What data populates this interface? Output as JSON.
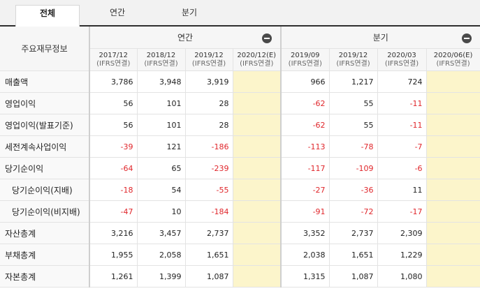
{
  "tabs": [
    {
      "label": "전체",
      "active": true
    },
    {
      "label": "연간",
      "active": false
    },
    {
      "label": "분기",
      "active": false
    }
  ],
  "table": {
    "row_header": "주요재무정보",
    "groups": [
      {
        "label": "연간",
        "periods": [
          {
            "date": "2017/12",
            "basis": "(IFRS연결)",
            "estimate": false
          },
          {
            "date": "2018/12",
            "basis": "(IFRS연결)",
            "estimate": false
          },
          {
            "date": "2019/12",
            "basis": "(IFRS연결)",
            "estimate": false
          },
          {
            "date": "2020/12(E)",
            "basis": "(IFRS연결)",
            "estimate": true
          }
        ]
      },
      {
        "label": "분기",
        "periods": [
          {
            "date": "2019/09",
            "basis": "(IFRS연결)",
            "estimate": false
          },
          {
            "date": "2019/12",
            "basis": "(IFRS연결)",
            "estimate": false
          },
          {
            "date": "2020/03",
            "basis": "(IFRS연결)",
            "estimate": false
          },
          {
            "date": "2020/06(E)",
            "basis": "(IFRS연결)",
            "estimate": true
          }
        ]
      }
    ],
    "rows": [
      {
        "label": "매출액",
        "indent": 0,
        "values": [
          "3,786",
          "3,948",
          "3,919",
          "",
          "966",
          "1,217",
          "724",
          ""
        ]
      },
      {
        "label": "영업이익",
        "indent": 0,
        "values": [
          "56",
          "101",
          "28",
          "",
          "-62",
          "55",
          "-11",
          ""
        ]
      },
      {
        "label": "영업이익(발표기준)",
        "indent": 0,
        "values": [
          "56",
          "101",
          "28",
          "",
          "-62",
          "55",
          "-11",
          ""
        ]
      },
      {
        "label": "세전계속사업이익",
        "indent": 0,
        "values": [
          "-39",
          "121",
          "-186",
          "",
          "-113",
          "-78",
          "-7",
          ""
        ]
      },
      {
        "label": "당기순이익",
        "indent": 0,
        "values": [
          "-64",
          "65",
          "-239",
          "",
          "-117",
          "-109",
          "-6",
          ""
        ]
      },
      {
        "label": "당기순이익(지배)",
        "indent": 1,
        "values": [
          "-18",
          "54",
          "-55",
          "",
          "-27",
          "-36",
          "11",
          ""
        ]
      },
      {
        "label": "당기순이익(비지배)",
        "indent": 1,
        "values": [
          "-47",
          "10",
          "-184",
          "",
          "-91",
          "-72",
          "-17",
          ""
        ]
      },
      {
        "label": "자산총계",
        "indent": 0,
        "values": [
          "3,216",
          "3,457",
          "2,737",
          "",
          "3,352",
          "2,737",
          "2,309",
          ""
        ]
      },
      {
        "label": "부채총계",
        "indent": 0,
        "values": [
          "1,955",
          "2,058",
          "1,651",
          "",
          "2,038",
          "1,651",
          "1,229",
          ""
        ]
      },
      {
        "label": "자본총계",
        "indent": 0,
        "values": [
          "1,261",
          "1,399",
          "1,087",
          "",
          "1,315",
          "1,087",
          "1,080",
          ""
        ]
      }
    ]
  },
  "colors": {
    "negative": "#e0262b",
    "estimate_bg": "#fcf5cb",
    "tab_border": "#2f2f2f"
  },
  "icons": {
    "collapse": "minus-circle-icon"
  }
}
